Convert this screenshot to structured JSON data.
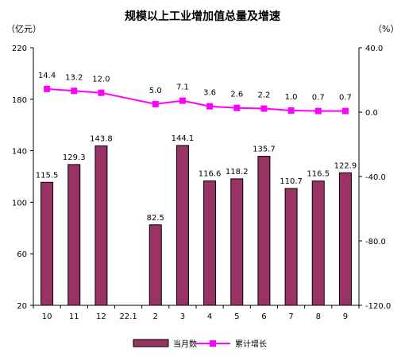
{
  "chart_data": {
    "type": "bar-line-combo",
    "title": "规模以上工业增加值总量及增速",
    "y_left_unit": "（亿元）",
    "y_right_unit": "（%）",
    "y_left_range": [
      20,
      220
    ],
    "y_left_ticks": [
      "220",
      "180",
      "140",
      "100",
      "60",
      "20"
    ],
    "y_right_range": [
      -120,
      40
    ],
    "y_right_ticks": [
      "40.0",
      "0.0",
      "-40.0",
      "-80.0",
      "-120.0"
    ],
    "categories": [
      "10",
      "11",
      "12",
      "22.1",
      "2",
      "3",
      "4",
      "5",
      "6",
      "7",
      "8",
      "9"
    ],
    "series": [
      {
        "name": "当月数",
        "kind": "bar",
        "axis": "left",
        "color": "#993366",
        "values": [
          115.5,
          129.3,
          143.8,
          null,
          82.5,
          144.1,
          116.6,
          118.2,
          135.7,
          110.7,
          116.5,
          122.9
        ],
        "labels": [
          "115.5",
          "129.3",
          "143.8",
          "",
          "82.5",
          "144.1",
          "116.6",
          "118.2",
          "135.7",
          "110.7",
          "116.5",
          "122.9"
        ]
      },
      {
        "name": "累计增长",
        "kind": "line",
        "axis": "right",
        "color": "#ff00ff",
        "values": [
          14.4,
          13.2,
          12.0,
          null,
          5.0,
          7.1,
          3.6,
          2.6,
          2.2,
          1.0,
          0.7,
          0.7
        ],
        "labels": [
          "14.4",
          "13.2",
          "12.0",
          "",
          "5.0",
          "7.1",
          "3.6",
          "2.6",
          "2.2",
          "1.0",
          "0.7",
          "0.7"
        ]
      }
    ],
    "legend_position": "bottom",
    "grid": false
  }
}
